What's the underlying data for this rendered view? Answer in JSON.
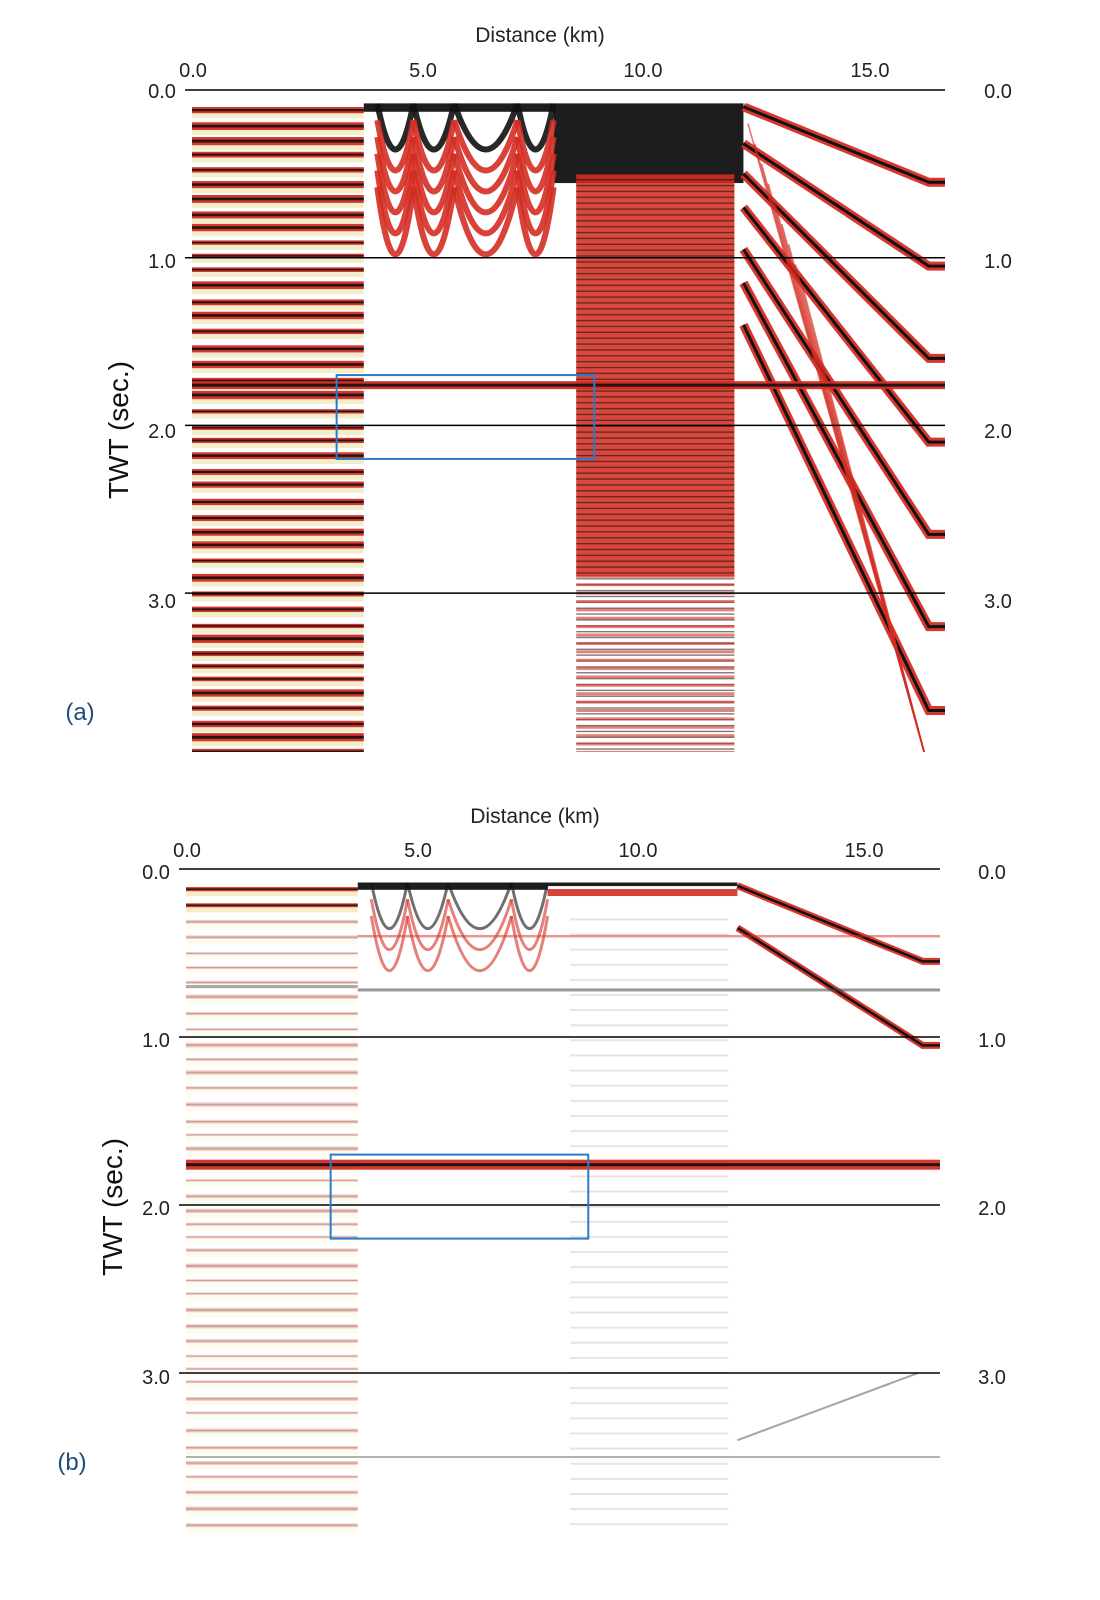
{
  "chart_data": [
    {
      "type": "seismic-section",
      "panel_label": "(a)",
      "xlabel": "Distance (km)",
      "ylabel": "TWT (sec.)",
      "x_ticks": [
        "0.0",
        "5.0",
        "10.0",
        "15.0"
      ],
      "y_ticks": [
        "0.0",
        "1.0",
        "2.0",
        "3.0"
      ],
      "xlim": [
        0,
        17.3
      ],
      "ylim": [
        0,
        3.95
      ],
      "grid_y": [
        1.0,
        2.0,
        3.0
      ],
      "highlight_box": {
        "x": [
          3.2,
          8.9
        ],
        "y": [
          1.7,
          2.2
        ]
      },
      "colors": {
        "peak": "#d42d22",
        "core": "#111111",
        "trough": "#e8dfa0",
        "box": "#2a7bc8"
      }
    },
    {
      "type": "seismic-section",
      "panel_label": "(b)",
      "xlabel": "Distance (km)",
      "ylabel": "TWT (sec.)",
      "x_ticks": [
        "0.0",
        "5.0",
        "10.0",
        "15.0"
      ],
      "y_ticks": [
        "0.0",
        "1.0",
        "2.0",
        "3.0"
      ],
      "xlim": [
        0,
        17.3
      ],
      "ylim": [
        0,
        3.95
      ],
      "grid_y": [
        1.0,
        2.0,
        3.0
      ],
      "highlight_box": {
        "x": [
          3.2,
          8.9
        ],
        "y": [
          1.7,
          2.2
        ]
      },
      "colors": {
        "peak": "#d42d22",
        "core": "#111111",
        "trough": "#e8dfa0",
        "box": "#2a7bc8"
      }
    }
  ]
}
